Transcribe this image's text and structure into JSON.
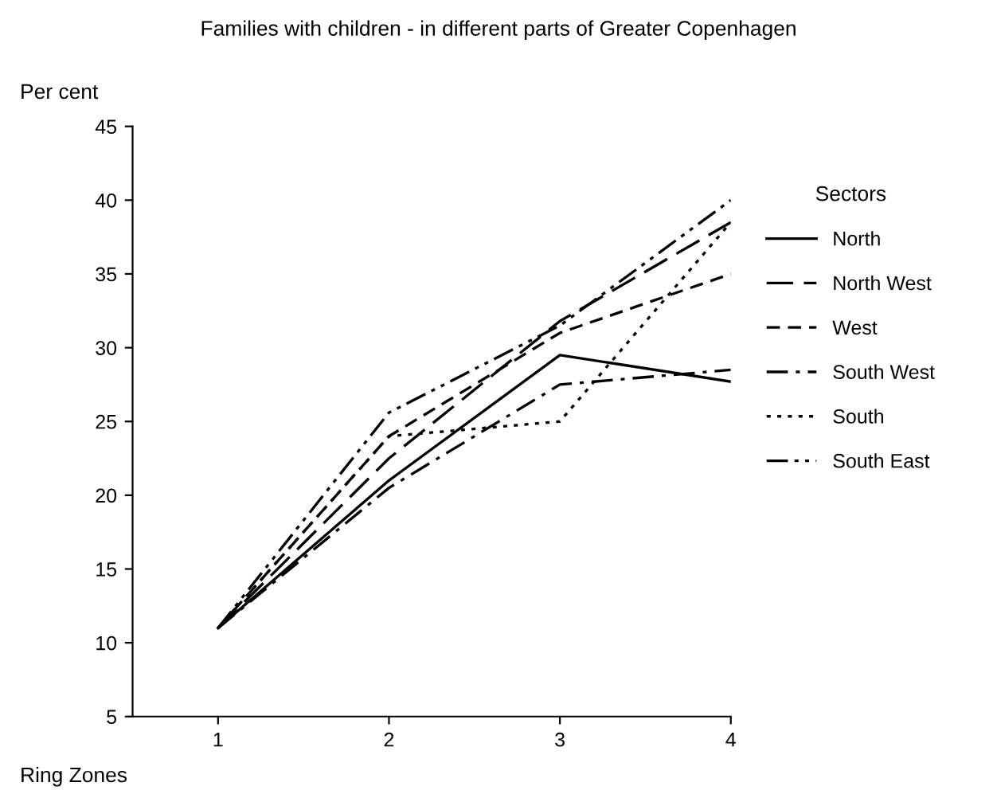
{
  "chart_data": {
    "type": "line",
    "title": "Families with children - in different parts of Greater Copenhagen",
    "ylabel": "Per cent",
    "xlabel": "Ring Zones",
    "legend_title": "Sectors",
    "x": [
      1,
      2,
      3,
      4
    ],
    "series": [
      {
        "name": "North",
        "color": "#000000",
        "line_style": "solid",
        "values": [
          11,
          21,
          29.5,
          27.7
        ]
      },
      {
        "name": "North West",
        "color": "#000000",
        "line_style": "longdash",
        "values": [
          11,
          22.5,
          31.8,
          38.5
        ]
      },
      {
        "name": "West",
        "color": "#000000",
        "line_style": "dashed",
        "values": [
          11,
          24,
          31,
          35
        ]
      },
      {
        "name": "South West",
        "color": "#000000",
        "line_style": "dashdot",
        "values": [
          11,
          20.5,
          27.5,
          28.5
        ]
      },
      {
        "name": "South",
        "color": "#000000",
        "line_style": "dotted",
        "values": [
          11,
          24,
          25,
          38.5
        ]
      },
      {
        "name": "South East",
        "color": "#000000",
        "line_style": "dashdotdot",
        "values": [
          11,
          25.6,
          31.5,
          40
        ]
      }
    ],
    "xlim": [
      0.5,
      4
    ],
    "ylim": [
      5,
      45
    ],
    "xticks": [
      1,
      2,
      3,
      4
    ],
    "yticks": [
      5,
      10,
      15,
      20,
      25,
      30,
      35,
      40,
      45
    ],
    "grid": false,
    "legend": "right",
    "marker": "none"
  }
}
